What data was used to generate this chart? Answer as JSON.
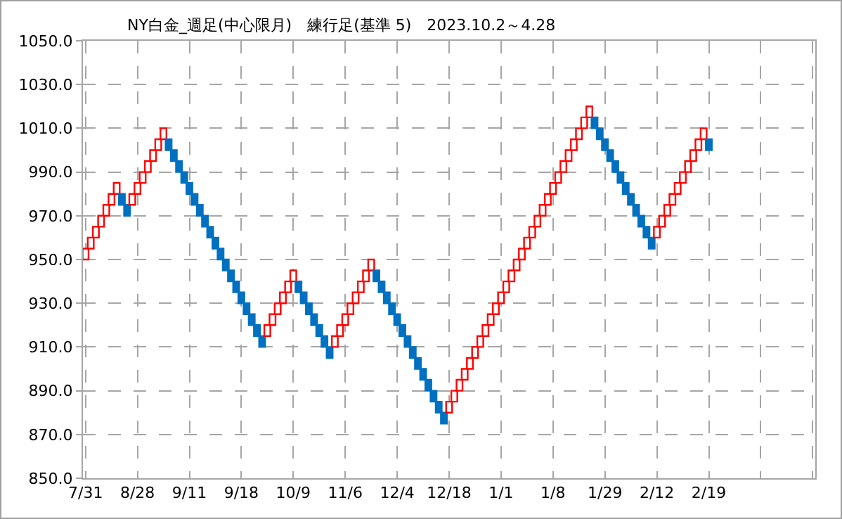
{
  "chart_data": {
    "type": "bar",
    "title": "NY白金_週足(中心限月)　練行足(基準 5)　2023.10.2～4.28",
    "categories": [
      "7/31",
      null,
      null,
      null,
      null,
      null,
      null,
      null,
      null,
      null,
      "8/28",
      null,
      null,
      null,
      null,
      null,
      null,
      null,
      null,
      null,
      "9/11",
      null,
      null,
      null,
      null,
      null,
      null,
      null,
      null,
      null,
      "9/18",
      null,
      null,
      null,
      null,
      null,
      null,
      null,
      null,
      null,
      "10/9",
      null,
      null,
      null,
      null,
      null,
      null,
      null,
      null,
      null,
      "11/6",
      null,
      null,
      null,
      null,
      null,
      null,
      null,
      null,
      null,
      "12/4",
      null,
      null,
      null,
      null,
      null,
      null,
      null,
      null,
      null,
      "12/18",
      null,
      null,
      null,
      null,
      null,
      null,
      null,
      null,
      null,
      "1/1",
      null,
      null,
      null,
      null,
      null,
      null,
      null,
      null,
      null,
      "1/8",
      null,
      null,
      null,
      null,
      null,
      null,
      null,
      null,
      null,
      "1/29",
      null,
      null,
      null,
      null,
      null,
      null,
      null,
      null,
      null,
      "2/12",
      null,
      null,
      null,
      null,
      null,
      null,
      null,
      null,
      null,
      "2/19",
      null,
      null,
      null,
      null,
      null,
      null,
      null,
      null,
      null,
      null,
      null,
      null,
      null,
      null,
      null,
      null,
      null,
      null,
      null,
      null
    ],
    "values": [
      5,
      5,
      5,
      5,
      5,
      5,
      5,
      -5,
      -5,
      5,
      5,
      5,
      5,
      5,
      5,
      5,
      -5,
      -5,
      -5,
      -5,
      -5,
      -5,
      -5,
      -5,
      -5,
      -5,
      -5,
      -5,
      -5,
      -5,
      -5,
      -5,
      -5,
      -5,
      -5,
      5,
      5,
      5,
      5,
      5,
      5,
      -5,
      -5,
      -5,
      -5,
      -5,
      -5,
      -5,
      5,
      5,
      5,
      5,
      5,
      5,
      5,
      5,
      -5,
      -5,
      -5,
      -5,
      -5,
      -5,
      -5,
      -5,
      -5,
      -5,
      -5,
      -5,
      -5,
      -5,
      5,
      5,
      5,
      5,
      5,
      5,
      5,
      5,
      5,
      5,
      5,
      5,
      5,
      5,
      5,
      5,
      5,
      5,
      5,
      5,
      5,
      5,
      5,
      5,
      5,
      5,
      5,
      5,
      -5,
      -5,
      -5,
      -5,
      -5,
      -5,
      -5,
      -5,
      -5,
      -5,
      -5,
      -5,
      5,
      5,
      5,
      5,
      5,
      5,
      5,
      5,
      5,
      5,
      -5,
      null,
      null,
      null,
      null,
      null,
      null,
      null,
      null,
      null,
      null,
      null,
      null,
      null,
      null,
      null,
      null,
      null,
      null,
      null,
      null
    ],
    "base": [
      950,
      955,
      960,
      965,
      970,
      975,
      980,
      980,
      975,
      975,
      980,
      985,
      990,
      995,
      1000,
      1005,
      1005,
      1000,
      995,
      990,
      985,
      980,
      975,
      970,
      965,
      960,
      955,
      950,
      945,
      940,
      935,
      930,
      925,
      920,
      915,
      915,
      920,
      925,
      930,
      935,
      940,
      940,
      935,
      930,
      925,
      920,
      915,
      910,
      910,
      915,
      920,
      925,
      930,
      935,
      940,
      945,
      945,
      940,
      935,
      930,
      925,
      920,
      915,
      910,
      905,
      900,
      895,
      890,
      885,
      880,
      880,
      885,
      890,
      895,
      900,
      905,
      910,
      915,
      920,
      925,
      930,
      935,
      940,
      945,
      950,
      955,
      960,
      965,
      970,
      975,
      980,
      985,
      990,
      995,
      1000,
      1005,
      1010,
      1015,
      1015,
      1010,
      1005,
      1000,
      995,
      990,
      985,
      980,
      975,
      970,
      965,
      960,
      960,
      965,
      970,
      975,
      980,
      985,
      990,
      995,
      1000,
      1005,
      1005,
      null,
      null,
      null,
      null,
      null,
      null,
      null,
      null,
      null,
      null,
      null,
      null,
      null,
      null,
      null,
      null,
      null,
      null,
      null,
      null
    ],
    "colors": [
      "#ff0000",
      "#ff0000",
      "#ff0000",
      "#ff0000",
      "#ff0000",
      "#ff0000",
      "#ff0000",
      "#0070c0",
      "#0070c0",
      "#ff0000",
      "#ff0000",
      "#ff0000",
      "#ff0000",
      "#ff0000",
      "#ff0000",
      "#ff0000",
      "#0070c0",
      "#0070c0",
      "#0070c0",
      "#0070c0",
      "#0070c0",
      "#0070c0",
      "#0070c0",
      "#0070c0",
      "#0070c0",
      "#0070c0",
      "#0070c0",
      "#0070c0",
      "#0070c0",
      "#0070c0",
      "#0070c0",
      "#0070c0",
      "#0070c0",
      "#0070c0",
      "#0070c0",
      "#ff0000",
      "#ff0000",
      "#ff0000",
      "#ff0000",
      "#ff0000",
      "#ff0000",
      "#0070c0",
      "#0070c0",
      "#0070c0",
      "#0070c0",
      "#0070c0",
      "#0070c0",
      "#0070c0",
      "#ff0000",
      "#ff0000",
      "#ff0000",
      "#ff0000",
      "#ff0000",
      "#ff0000",
      "#ff0000",
      "#ff0000",
      "#0070c0",
      "#0070c0",
      "#0070c0",
      "#0070c0",
      "#0070c0",
      "#0070c0",
      "#0070c0",
      "#0070c0",
      "#0070c0",
      "#0070c0",
      "#0070c0",
      "#0070c0",
      "#0070c0",
      "#0070c0",
      "#ff0000",
      "#ff0000",
      "#ff0000",
      "#ff0000",
      "#ff0000",
      "#ff0000",
      "#ff0000",
      "#ff0000",
      "#ff0000",
      "#ff0000",
      "#ff0000",
      "#ff0000",
      "#ff0000",
      "#ff0000",
      "#ff0000",
      "#ff0000",
      "#ff0000",
      "#ff0000",
      "#ff0000",
      "#ff0000",
      "#ff0000",
      "#ff0000",
      "#ff0000",
      "#ff0000",
      "#ff0000",
      "#ff0000",
      "#ff0000",
      "#ff0000",
      "#0070c0",
      "#0070c0",
      "#0070c0",
      "#0070c0",
      "#0070c0",
      "#0070c0",
      "#0070c0",
      "#0070c0",
      "#0070c0",
      "#0070c0",
      "#0070c0",
      "#0070c0",
      "#ff0000",
      "#ff0000",
      "#ff0000",
      "#ff0000",
      "#ff0000",
      "#ff0000",
      "#ff0000",
      "#ff0000",
      "#ff0000",
      "#ff0000",
      "#0070c0",
      null,
      null,
      null,
      null,
      null,
      null,
      null,
      null,
      null,
      null,
      null,
      null,
      null,
      null,
      null,
      null,
      null,
      null,
      null,
      null
    ],
    "ylim": [
      850,
      1050
    ],
    "yticks": [
      {
        "value": 850,
        "label": "850.0"
      },
      {
        "value": 870,
        "label": "870.0"
      },
      {
        "value": 890,
        "label": "890.0"
      },
      {
        "value": 910,
        "label": "910.0"
      },
      {
        "value": 930,
        "label": "930.0"
      },
      {
        "value": 950,
        "label": "950.0"
      },
      {
        "value": 970,
        "label": "970.0"
      },
      {
        "value": 990,
        "label": "990.0"
      },
      {
        "value": 1010,
        "label": "1010.0"
      },
      {
        "value": 1030,
        "label": "1030.0"
      },
      {
        "value": 1050,
        "label": "1050.0"
      }
    ],
    "grid": true
  }
}
